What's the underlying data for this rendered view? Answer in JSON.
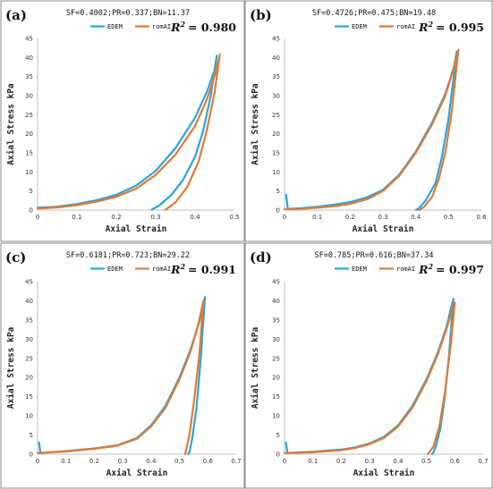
{
  "colors": {
    "EDEM": "#2aa5d9",
    "romAI": "#e07a35"
  },
  "chart_data": [
    {
      "type": "line",
      "panel_label": "(a)",
      "params_text": "SF=0.4002;PR=0.337;BN=11.37",
      "r2_label": "R",
      "r2_sup": "2",
      "r2_value": "= 0.980",
      "xlabel": "Axial Strain",
      "ylabel": "Axial Stress kPa",
      "xlim": [
        0,
        0.5
      ],
      "ylim": [
        0,
        45
      ],
      "xticks": [
        "0",
        "0.1",
        "0.2",
        "0.3",
        "0.4",
        "0.5"
      ],
      "yticks": [
        "0",
        "5",
        "10",
        "15",
        "20",
        "25",
        "30",
        "35",
        "40",
        "45"
      ],
      "legend_position": "top-center",
      "series": [
        {
          "name": "EDEM",
          "points": [
            [
              0,
              0.6
            ],
            [
              0.05,
              0.9
            ],
            [
              0.1,
              1.6
            ],
            [
              0.15,
              2.6
            ],
            [
              0.2,
              4.0
            ],
            [
              0.25,
              6.4
            ],
            [
              0.3,
              10.3
            ],
            [
              0.35,
              16.2
            ],
            [
              0.4,
              24.2
            ],
            [
              0.43,
              31.0
            ],
            [
              0.45,
              36.8
            ],
            [
              0.455,
              40.5
            ],
            [
              0.44,
              30.0
            ],
            [
              0.42,
              20.5
            ],
            [
              0.4,
              14.0
            ],
            [
              0.37,
              8.0
            ],
            [
              0.34,
              4.0
            ],
            [
              0.31,
              1.3
            ],
            [
              0.29,
              0.1
            ]
          ]
        },
        {
          "name": "romAI",
          "points": [
            [
              0,
              0.4
            ],
            [
              0.05,
              0.7
            ],
            [
              0.1,
              1.3
            ],
            [
              0.15,
              2.2
            ],
            [
              0.2,
              3.5
            ],
            [
              0.25,
              5.6
            ],
            [
              0.3,
              9.2
            ],
            [
              0.35,
              14.5
            ],
            [
              0.4,
              22.0
            ],
            [
              0.43,
              29.0
            ],
            [
              0.45,
              35.3
            ],
            [
              0.463,
              40.8
            ],
            [
              0.45,
              31.0
            ],
            [
              0.43,
              21.0
            ],
            [
              0.41,
              13.0
            ],
            [
              0.38,
              6.0
            ],
            [
              0.35,
              2.0
            ],
            [
              0.325,
              0.1
            ]
          ]
        }
      ]
    },
    {
      "type": "line",
      "panel_label": "(b)",
      "params_text": "SF=0.4726;PR=0.475;BN=19.48",
      "r2_label": "R",
      "r2_sup": "2",
      "r2_value": "= 0.995",
      "xlabel": "Axial Strain",
      "ylabel": "Axial Stress kPa",
      "xlim": [
        0,
        0.6
      ],
      "ylim": [
        0,
        45
      ],
      "xticks": [
        "0",
        "0.1",
        "0.2",
        "0.3",
        "0.4",
        "0.5",
        "0.6"
      ],
      "yticks": [
        "0",
        "5",
        "10",
        "15",
        "20",
        "25",
        "30",
        "35",
        "40",
        "45"
      ],
      "legend_position": "top-center",
      "series": [
        {
          "name": "EDEM",
          "points": [
            [
              0.005,
              4.0
            ],
            [
              0.01,
              0.3
            ],
            [
              0.05,
              0.5
            ],
            [
              0.1,
              0.9
            ],
            [
              0.15,
              1.4
            ],
            [
              0.2,
              2.1
            ],
            [
              0.25,
              3.3
            ],
            [
              0.3,
              5.3
            ],
            [
              0.35,
              9.3
            ],
            [
              0.4,
              15.3
            ],
            [
              0.45,
              23.0
            ],
            [
              0.49,
              30.5
            ],
            [
              0.515,
              37.0
            ],
            [
              0.525,
              41.5
            ],
            [
              0.5,
              24.0
            ],
            [
              0.48,
              14.0
            ],
            [
              0.46,
              7.0
            ],
            [
              0.43,
              2.5
            ],
            [
              0.41,
              0.5
            ],
            [
              0.4,
              0.0
            ]
          ]
        },
        {
          "name": "romAI",
          "points": [
            [
              0,
              0.2
            ],
            [
              0.05,
              0.3
            ],
            [
              0.1,
              0.6
            ],
            [
              0.15,
              1.0
            ],
            [
              0.2,
              1.6
            ],
            [
              0.25,
              2.8
            ],
            [
              0.3,
              5.0
            ],
            [
              0.35,
              9.0
            ],
            [
              0.4,
              15.0
            ],
            [
              0.45,
              22.5
            ],
            [
              0.49,
              30.0
            ],
            [
              0.515,
              37.0
            ],
            [
              0.53,
              42.0
            ],
            [
              0.51,
              26.0
            ],
            [
              0.49,
              15.0
            ],
            [
              0.47,
              8.0
            ],
            [
              0.45,
              3.5
            ],
            [
              0.425,
              0.8
            ],
            [
              0.41,
              0.0
            ]
          ]
        }
      ]
    },
    {
      "type": "line",
      "panel_label": "(c)",
      "params_text": "SF=0.6181;PR=0.723;BN=29.22",
      "r2_label": "R",
      "r2_sup": "2",
      "r2_value": "= 0.991",
      "xlabel": "Axial Strain",
      "ylabel": "Axial Stress kPa",
      "xlim": [
        0,
        0.7
      ],
      "ylim": [
        0,
        45
      ],
      "xticks": [
        "0",
        "0.1",
        "0.2",
        "0.3",
        "0.4",
        "0.5",
        "0.6",
        "0.7"
      ],
      "yticks": [
        "0",
        "5",
        "10",
        "15",
        "20",
        "25",
        "30",
        "35",
        "40",
        "45"
      ],
      "legend_position": "top-center",
      "series": [
        {
          "name": "EDEM",
          "points": [
            [
              0.005,
              3.0
            ],
            [
              0.01,
              0.3
            ],
            [
              0.1,
              0.8
            ],
            [
              0.2,
              1.5
            ],
            [
              0.28,
              2.3
            ],
            [
              0.35,
              4.2
            ],
            [
              0.4,
              7.5
            ],
            [
              0.45,
              12.5
            ],
            [
              0.5,
              20.0
            ],
            [
              0.54,
              27.5
            ],
            [
              0.57,
              34.5
            ],
            [
              0.59,
              41.0
            ],
            [
              0.575,
              25.0
            ],
            [
              0.56,
              12.0
            ],
            [
              0.545,
              4.0
            ],
            [
              0.535,
              0.5
            ],
            [
              0.53,
              0.0
            ]
          ]
        },
        {
          "name": "romAI",
          "points": [
            [
              0,
              0.3
            ],
            [
              0.1,
              0.7
            ],
            [
              0.2,
              1.4
            ],
            [
              0.28,
              2.2
            ],
            [
              0.35,
              4.0
            ],
            [
              0.4,
              7.2
            ],
            [
              0.45,
              12.0
            ],
            [
              0.5,
              19.5
            ],
            [
              0.54,
              27.0
            ],
            [
              0.565,
              33.5
            ],
            [
              0.585,
              40.0
            ],
            [
              0.57,
              26.0
            ],
            [
              0.55,
              13.0
            ],
            [
              0.535,
              5.0
            ],
            [
              0.525,
              1.5
            ],
            [
              0.52,
              0.0
            ]
          ]
        }
      ]
    },
    {
      "type": "line",
      "panel_label": "(d)",
      "params_text": "SF=0.785;PR=0.616;BN=37.34",
      "r2_label": "R",
      "r2_sup": "2",
      "r2_value": "= 0.997",
      "xlabel": "Axial Strain",
      "ylabel": "Axial Stress kPa",
      "xlim": [
        0,
        0.7
      ],
      "ylim": [
        0,
        45
      ],
      "xticks": [
        "0",
        "0.1",
        "0.2",
        "0.3",
        "0.4",
        "0.5",
        "0.6",
        "0.7"
      ],
      "yticks": [
        "0",
        "5",
        "10",
        "15",
        "20",
        "25",
        "30",
        "35",
        "40",
        "45"
      ],
      "legend_position": "top-center",
      "series": [
        {
          "name": "EDEM",
          "points": [
            [
              0.005,
              3.0
            ],
            [
              0.01,
              0.3
            ],
            [
              0.1,
              0.6
            ],
            [
              0.2,
              1.2
            ],
            [
              0.25,
              1.8
            ],
            [
              0.3,
              2.8
            ],
            [
              0.35,
              4.5
            ],
            [
              0.4,
              7.5
            ],
            [
              0.45,
              12.5
            ],
            [
              0.5,
              19.5
            ],
            [
              0.54,
              26.5
            ],
            [
              0.57,
              33.0
            ],
            [
              0.595,
              40.5
            ],
            [
              0.58,
              26.0
            ],
            [
              0.565,
              15.0
            ],
            [
              0.55,
              7.0
            ],
            [
              0.535,
              2.5
            ],
            [
              0.525,
              0.5
            ],
            [
              0.52,
              0.0
            ]
          ]
        },
        {
          "name": "romAI",
          "points": [
            [
              0,
              0.3
            ],
            [
              0.1,
              0.5
            ],
            [
              0.2,
              1.0
            ],
            [
              0.25,
              1.6
            ],
            [
              0.3,
              2.6
            ],
            [
              0.35,
              4.2
            ],
            [
              0.4,
              7.2
            ],
            [
              0.45,
              12.0
            ],
            [
              0.5,
              19.0
            ],
            [
              0.54,
              26.0
            ],
            [
              0.57,
              32.5
            ],
            [
              0.6,
              39.5
            ],
            [
              0.585,
              28.0
            ],
            [
              0.565,
              16.0
            ],
            [
              0.545,
              7.0
            ],
            [
              0.525,
              2.0
            ],
            [
              0.505,
              0.0
            ]
          ]
        }
      ]
    }
  ]
}
